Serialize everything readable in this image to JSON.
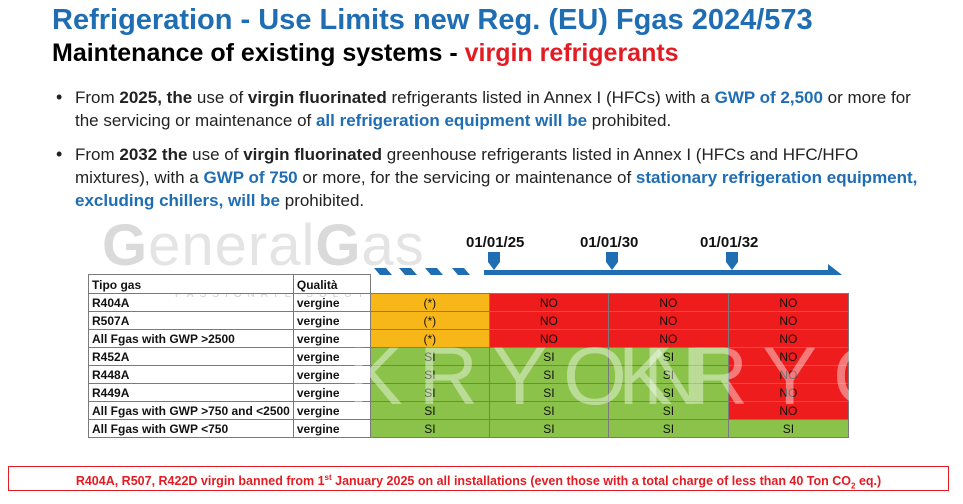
{
  "title": "Refrigeration - Use Limits new Reg. (EU) Fgas 2024/573",
  "subtitle": {
    "main": "Maintenance of existing systems - ",
    "highlight": "virgin refrigerants"
  },
  "bullets": [
    {
      "p1": "From ",
      "p2": "2025, the",
      "p3": " use of ",
      "p4": "virgin fluorinated",
      "p5": " refrigerants listed in Annex I (HFCs) with a ",
      "p6": "GWP of 2,500",
      "p7": " or more for the servicing or maintenance of ",
      "p8": "all refrigeration equipment will be",
      "p9": " prohibited."
    },
    {
      "p1": "From ",
      "p2": "2032 the",
      "p3": " use of ",
      "p4": "virgin fluorinated",
      "p5": " greenhouse refrigerants listed in Annex I (HFCs and HFC/HFO mixtures), with a ",
      "p6": "GWP of 750",
      "p7": " or more, for the servicing or maintenance of ",
      "p8": "stationary refrigeration equipment, excluding chillers, will be",
      "p9": " prohibited."
    }
  ],
  "watermark": {
    "g1": "G",
    "w1": "eneral",
    "g2": "G",
    "w2": "as",
    "small": "PASSIONATE SOLUTIONS",
    "kryon1": "KRYON",
    "kryon2": "KRYON"
  },
  "timeline": {
    "dates": [
      "01/01/25",
      "01/01/30",
      "01/01/32"
    ]
  },
  "table": {
    "headers": {
      "gas": "Tipo gas",
      "quality": "Qualità"
    },
    "rows": [
      {
        "gas": "R404A",
        "quality": "vergine",
        "cells": [
          "(*)",
          "NO",
          "NO",
          "NO"
        ],
        "colors": [
          "or",
          "rd",
          "rd",
          "rd"
        ]
      },
      {
        "gas": "R507A",
        "quality": "vergine",
        "cells": [
          "(*)",
          "NO",
          "NO",
          "NO"
        ],
        "colors": [
          "or",
          "rd",
          "rd",
          "rd"
        ]
      },
      {
        "gas": "All Fgas with GWP >2500",
        "quality": "vergine",
        "cells": [
          "(*)",
          "NO",
          "NO",
          "NO"
        ],
        "colors": [
          "or",
          "rd",
          "rd",
          "rd"
        ]
      },
      {
        "gas": "R452A",
        "quality": "vergine",
        "cells": [
          "SI",
          "SI",
          "SI",
          "NO"
        ],
        "colors": [
          "gr",
          "gr",
          "gr",
          "rd"
        ]
      },
      {
        "gas": "R448A",
        "quality": "vergine",
        "cells": [
          "SI",
          "SI",
          "SI",
          "NO"
        ],
        "colors": [
          "gr",
          "gr",
          "gr",
          "rd"
        ]
      },
      {
        "gas": "R449A",
        "quality": "vergine",
        "cells": [
          "SI",
          "SI",
          "SI",
          "NO"
        ],
        "colors": [
          "gr",
          "gr",
          "gr",
          "rd"
        ]
      },
      {
        "gas": "All Fgas with GWP >750 and <2500",
        "quality": "vergine",
        "cells": [
          "SI",
          "SI",
          "SI",
          "NO"
        ],
        "colors": [
          "gr",
          "gr",
          "gr",
          "rd"
        ]
      },
      {
        "gas": "All Fgas with GWP <750",
        "quality": "vergine",
        "cells": [
          "SI",
          "SI",
          "SI",
          "SI"
        ],
        "colors": [
          "gr",
          "gr",
          "gr",
          "gr"
        ]
      }
    ]
  },
  "footer": {
    "t1": "R404A, R507, R422D virgin banned from 1",
    "sup": "st",
    "t2": " January 2025 on all installations (even those with a total charge of less than 40 Ton CO",
    "sub": "2",
    "t3": " eq.)"
  },
  "colors": {
    "title_blue": "#1f6db3",
    "highlight_red": "#e31b23",
    "orange": "#f7b718",
    "red": "#ee1c1c",
    "green": "#8bc34a",
    "arrow_blue": "#1f6db3"
  }
}
